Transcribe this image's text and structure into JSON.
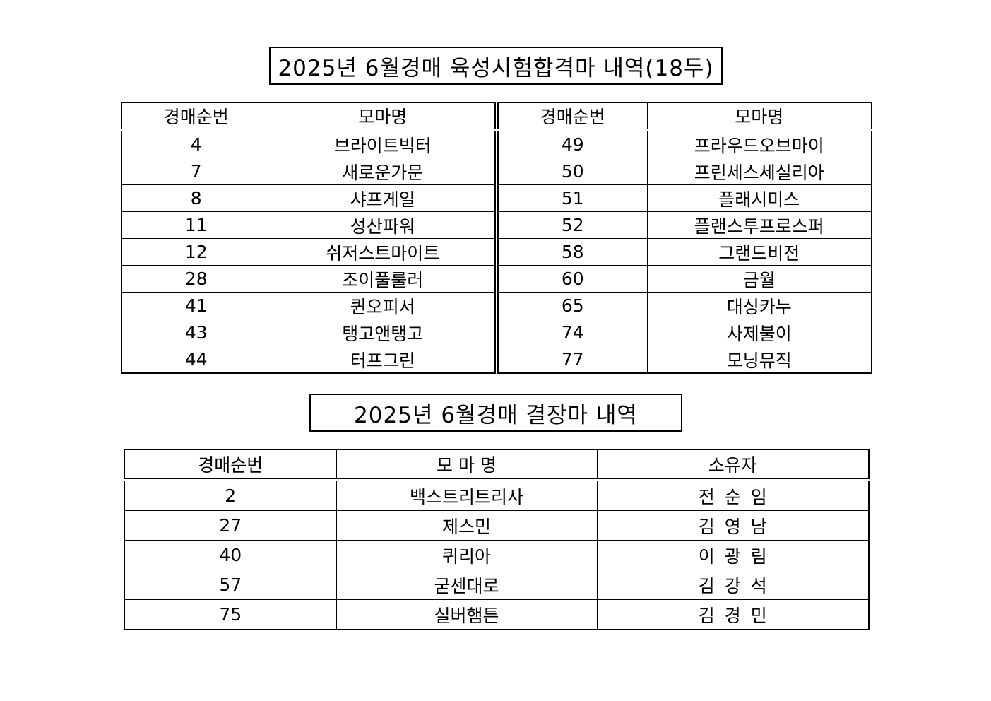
{
  "section1": {
    "title": "2025년 6월경매 육성시험합격마 내역(18두)",
    "headers": {
      "number": "경매순번",
      "name": "모마명"
    },
    "left_rows": [
      {
        "number": "4",
        "name": "브라이트빅터"
      },
      {
        "number": "7",
        "name": "새로운가문"
      },
      {
        "number": "8",
        "name": "샤프게일"
      },
      {
        "number": "11",
        "name": "성산파워"
      },
      {
        "number": "12",
        "name": "쉬저스트마이트"
      },
      {
        "number": "28",
        "name": "조이풀룰러"
      },
      {
        "number": "41",
        "name": "퀸오피서"
      },
      {
        "number": "43",
        "name": "탱고앤탱고"
      },
      {
        "number": "44",
        "name": "터프그린"
      }
    ],
    "right_rows": [
      {
        "number": "49",
        "name": "프라우드오브마이"
      },
      {
        "number": "50",
        "name": "프린세스세실리아"
      },
      {
        "number": "51",
        "name": "플래시미스"
      },
      {
        "number": "52",
        "name": "플랜스투프로스퍼"
      },
      {
        "number": "58",
        "name": "그랜드비전"
      },
      {
        "number": "60",
        "name": "금월"
      },
      {
        "number": "65",
        "name": "대싱카누"
      },
      {
        "number": "74",
        "name": "사제불이"
      },
      {
        "number": "77",
        "name": "모닝뮤직"
      }
    ]
  },
  "section2": {
    "title": "2025년 6월경매 결장마 내역",
    "headers": {
      "number": "경매순번",
      "name": "모 마 명",
      "owner": "소유자"
    },
    "rows": [
      {
        "number": "2",
        "name": "백스트리트리사",
        "owner": "전순임"
      },
      {
        "number": "27",
        "name": "제스민",
        "owner": "김영남"
      },
      {
        "number": "40",
        "name": "퀴리아",
        "owner": "이광림"
      },
      {
        "number": "57",
        "name": "굳센대로",
        "owner": "김강석"
      },
      {
        "number": "75",
        "name": "실버햄튼",
        "owner": "김경민"
      }
    ]
  }
}
